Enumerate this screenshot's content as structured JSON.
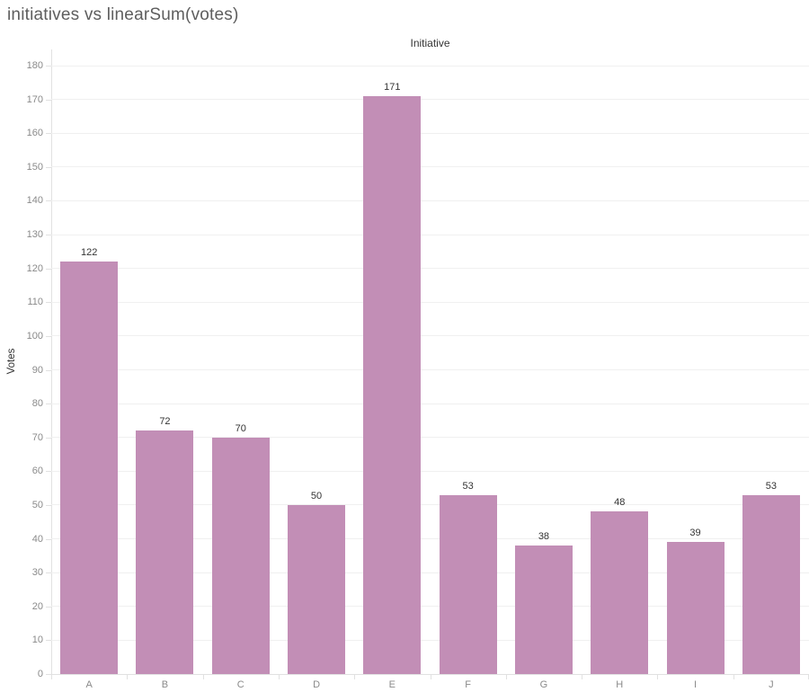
{
  "title": "initiatives vs linearSum(votes)",
  "column_header": "Initiative",
  "chart_data": {
    "type": "bar",
    "title": "initiatives vs linearSum(votes)",
    "xlabel": "Initiative",
    "ylabel": "Votes",
    "categories": [
      "A",
      "B",
      "C",
      "D",
      "E",
      "F",
      "G",
      "H",
      "I",
      "J"
    ],
    "values": [
      122,
      72,
      70,
      50,
      171,
      53,
      38,
      48,
      39,
      53
    ],
    "ylim": [
      0,
      180
    ],
    "ytick_step": 10,
    "grid": true,
    "legend": "none",
    "value_labels_shown": true,
    "bar_color": "#c28eb6"
  },
  "colors": {
    "bar": "#c28eb6",
    "title_text": "#5e5e5e",
    "header_text": "#333333",
    "value_label_text": "#333333",
    "axis_tick_text": "#8a8a8a",
    "gridline": "#f0f0f0",
    "axis_line": "#e1e1e1",
    "background": "#ffffff"
  }
}
